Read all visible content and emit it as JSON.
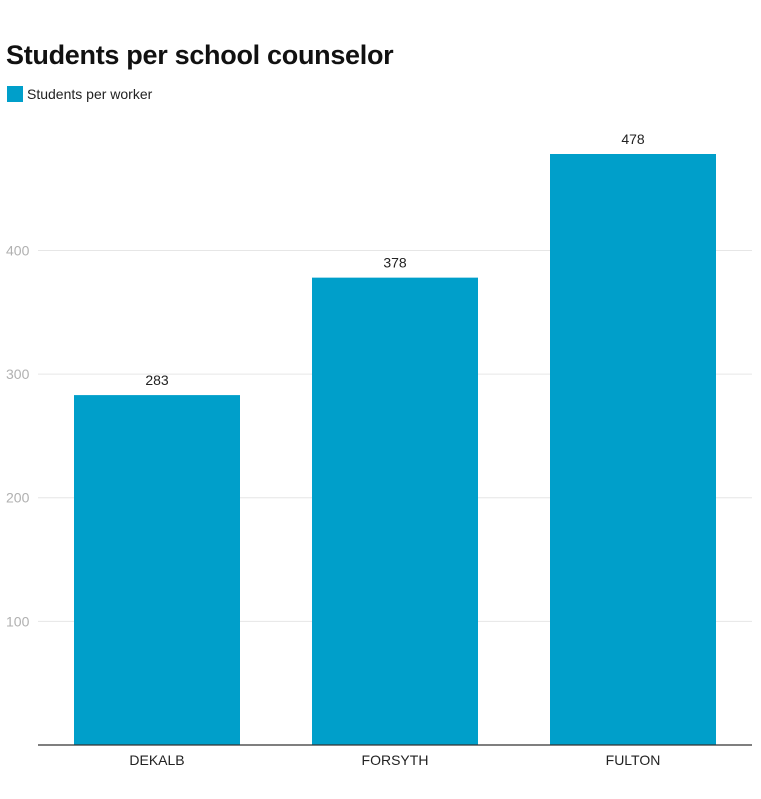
{
  "chart_data": {
    "type": "bar",
    "title": "Students per school counselor",
    "categories": [
      "DEKALB",
      "FORSYTH",
      "FULTON"
    ],
    "series": [
      {
        "name": "Students per worker",
        "values": [
          283,
          378,
          478
        ],
        "color": "#009fca"
      }
    ],
    "data_labels": [
      "283",
      "378",
      "478"
    ],
    "yticks": [
      100,
      200,
      300,
      400
    ],
    "ytick_labels": [
      "100",
      "200",
      "300",
      "400"
    ],
    "ylim": [
      0,
      478
    ],
    "grid": true,
    "legend": "top-left",
    "xlabel": "",
    "ylabel": ""
  }
}
